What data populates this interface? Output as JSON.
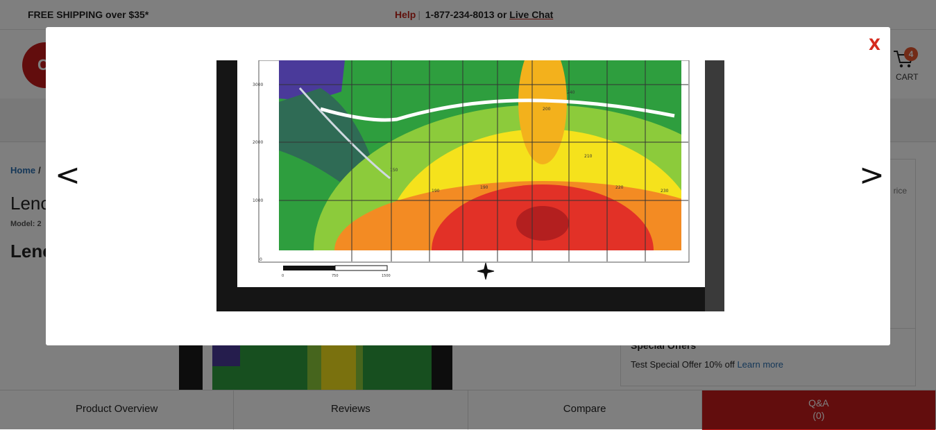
{
  "topbar": {
    "shipping": "FREE SHIPPING over $35*",
    "help": "Help",
    "separator": "|",
    "phone_text": "1-877-234-8013 or",
    "chat": "Live Chat"
  },
  "cart": {
    "count": "4",
    "label": "CART"
  },
  "breadcrumb": {
    "home": "Home",
    "sep": "/"
  },
  "product": {
    "title_partial": "Lenc",
    "model_partial": "Model: 2",
    "subtitle_partial": "Lenc"
  },
  "price_box": {
    "right_label_partial": "rice",
    "special_title": "Special Offers",
    "offer_text": "Test Special Offer 10% off",
    "offer_link": "Learn more"
  },
  "tabs": [
    {
      "label": "Product Overview"
    },
    {
      "label": "Reviews"
    },
    {
      "label": "Compare"
    },
    {
      "label": "Q&A",
      "count": "(0)"
    }
  ],
  "modal": {
    "close_label": "X",
    "prev_label": "<",
    "next_label": ">",
    "image": {
      "contours": [
        "150",
        "190",
        "190",
        "200",
        "210",
        "220",
        "230",
        "240"
      ],
      "y_ticks": [
        "3000",
        "2000",
        "1000",
        "0"
      ],
      "scale_ticks": [
        "0",
        "750",
        "1500"
      ],
      "colors": {
        "frame": "#151515",
        "paper": "#ffffff",
        "green": "#2e9e3e",
        "lime": "#8ccb3b",
        "yellow": "#f5e21c",
        "orange": "#f38b23",
        "red": "#e23127",
        "purple": "#4a3a9a"
      }
    }
  },
  "colors": {
    "brand_red": "#c41a1a",
    "link_blue": "#2a6fb0"
  }
}
